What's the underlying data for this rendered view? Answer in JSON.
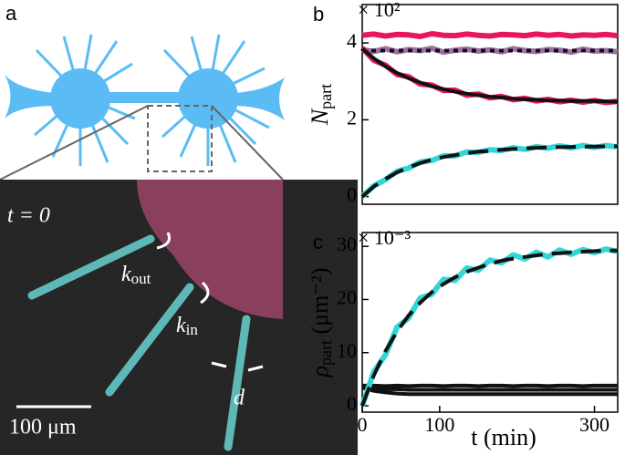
{
  "figure": {
    "panel_a": "a",
    "time": "t = 0",
    "k_out": {
      "main": "k",
      "sub": "out"
    },
    "k_in": {
      "main": "k",
      "sub": "in"
    },
    "d": "d",
    "scale": "100 μm"
  },
  "chart_data": [
    {
      "type": "line",
      "panel": "b",
      "multiplier": "× 10²",
      "ylabel": {
        "main": "N",
        "sub": "part"
      },
      "xlim": [
        0,
        330
      ],
      "ylim": [
        -0.2,
        5.0
      ],
      "yticks": [
        0,
        2,
        4
      ],
      "x": [
        0,
        15,
        30,
        45,
        60,
        75,
        90,
        105,
        120,
        135,
        150,
        165,
        180,
        195,
        210,
        225,
        240,
        255,
        270,
        285,
        300,
        315,
        330
      ],
      "series": [
        {
          "color": "#e8175d",
          "style": "solid",
          "values": [
            4.2,
            4.23,
            4.18,
            4.22,
            4.21,
            4.17,
            4.24,
            4.2,
            4.19,
            4.23,
            4.2,
            4.18,
            4.22,
            4.21,
            4.19,
            4.23,
            4.2,
            4.22,
            4.18,
            4.21,
            4.2,
            4.22,
            4.19
          ]
        },
        {
          "color": "#9b6fa8",
          "style": "solid",
          "values": [
            3.82,
            3.78,
            3.85,
            3.77,
            3.83,
            3.8,
            3.86,
            3.76,
            3.81,
            3.84,
            3.79,
            3.82,
            3.77,
            3.85,
            3.8,
            3.78,
            3.83,
            3.81,
            3.76,
            3.84,
            3.79,
            3.8,
            3.77
          ]
        },
        {
          "color": "#111111",
          "style": "dotted",
          "values": [
            3.8,
            3.8,
            3.8,
            3.8,
            3.8,
            3.8,
            3.8,
            3.8,
            3.8,
            3.8,
            3.8,
            3.8,
            3.8,
            3.8,
            3.8,
            3.8,
            3.8,
            3.8,
            3.8,
            3.8,
            3.8,
            3.8,
            3.8
          ]
        },
        {
          "color": "#e8175d",
          "style": "solid",
          "values": [
            3.87,
            3.55,
            3.42,
            3.18,
            3.12,
            2.93,
            2.9,
            2.76,
            2.77,
            2.64,
            2.67,
            2.57,
            2.61,
            2.52,
            2.56,
            2.49,
            2.53,
            2.47,
            2.51,
            2.46,
            2.5,
            2.45,
            2.48
          ]
        },
        {
          "color": "#111111",
          "style": "solid",
          "values": [
            3.85,
            3.6,
            3.39,
            3.22,
            3.08,
            2.97,
            2.87,
            2.8,
            2.73,
            2.68,
            2.64,
            2.6,
            2.58,
            2.55,
            2.53,
            2.52,
            2.5,
            2.5,
            2.49,
            2.49,
            2.49,
            2.48,
            2.47
          ]
        },
        {
          "color": "#33d6d6",
          "style": "solid",
          "values": [
            0,
            0.28,
            0.44,
            0.66,
            0.74,
            0.9,
            0.94,
            1.06,
            1.06,
            1.16,
            1.15,
            1.22,
            1.2,
            1.27,
            1.23,
            1.3,
            1.26,
            1.32,
            1.27,
            1.33,
            1.28,
            1.33,
            1.29
          ]
        },
        {
          "color": "#111111",
          "style": "dashed",
          "values": [
            0,
            0.26,
            0.46,
            0.63,
            0.76,
            0.87,
            0.96,
            1.03,
            1.08,
            1.13,
            1.17,
            1.19,
            1.22,
            1.24,
            1.25,
            1.27,
            1.28,
            1.29,
            1.29,
            1.3,
            1.3,
            1.31,
            1.31
          ]
        }
      ]
    },
    {
      "type": "line",
      "panel": "c",
      "multiplier": "× 10⁻³",
      "ylabel": {
        "main": "ρ",
        "sub": "part",
        "rest": " (μm⁻²)"
      },
      "xlabel": "t (min)",
      "xlim": [
        0,
        330
      ],
      "ylim": [
        -1.2,
        32.6
      ],
      "yticks": [
        0,
        10,
        20,
        30
      ],
      "xticks": [
        0,
        100,
        300
      ],
      "x": [
        0,
        15,
        30,
        45,
        60,
        75,
        90,
        105,
        120,
        135,
        150,
        165,
        180,
        195,
        210,
        225,
        240,
        255,
        270,
        285,
        300,
        315,
        330
      ],
      "series": [
        {
          "color": "#111111",
          "style": "solid",
          "values": [
            3.8,
            3.8,
            3.7,
            3.8,
            3.7,
            3.8,
            3.8,
            3.7,
            3.8,
            3.8,
            3.7,
            3.8,
            3.8,
            3.7,
            3.8,
            3.8,
            3.7,
            3.8,
            3.8,
            3.7,
            3.8,
            3.8,
            3.8
          ]
        },
        {
          "color": "#111111",
          "style": "solid",
          "values": [
            3.5,
            3.2,
            3.1,
            3.1,
            3.0,
            3.0,
            3.0,
            3.0,
            3.0,
            3.0,
            3.0,
            3.0,
            3.0,
            3.0,
            3.0,
            3.0,
            3.0,
            3.0,
            3.0,
            3.0,
            3.0,
            3.0,
            3.0
          ]
        },
        {
          "color": "#111111",
          "style": "solid",
          "values": [
            3.4,
            2.8,
            2.5,
            2.3,
            2.2,
            2.2,
            2.2,
            2.2,
            2.2,
            2.2,
            2.2,
            2.2,
            2.2,
            2.2,
            2.2,
            2.2,
            2.2,
            2.2,
            2.2,
            2.2,
            2.2,
            2.2,
            2.2
          ]
        },
        {
          "color": "#33d6d6",
          "style": "solid",
          "values": [
            0,
            6.4,
            9.6,
            14.8,
            16.5,
            20.3,
            21.0,
            23.8,
            23.6,
            25.9,
            25.5,
            27.4,
            26.9,
            28.4,
            27.6,
            28.9,
            28.0,
            29.3,
            28.5,
            29.4,
            28.8,
            29.5,
            29.0
          ]
        },
        {
          "color": "#111111",
          "style": "dashed",
          "values": [
            0,
            5.7,
            10.3,
            14.0,
            17.0,
            19.4,
            21.4,
            22.9,
            24.2,
            25.2,
            26.0,
            26.7,
            27.3,
            27.7,
            28.0,
            28.3,
            28.6,
            28.7,
            28.9,
            29.0,
            29.1,
            29.2,
            29.2
          ]
        }
      ]
    }
  ]
}
